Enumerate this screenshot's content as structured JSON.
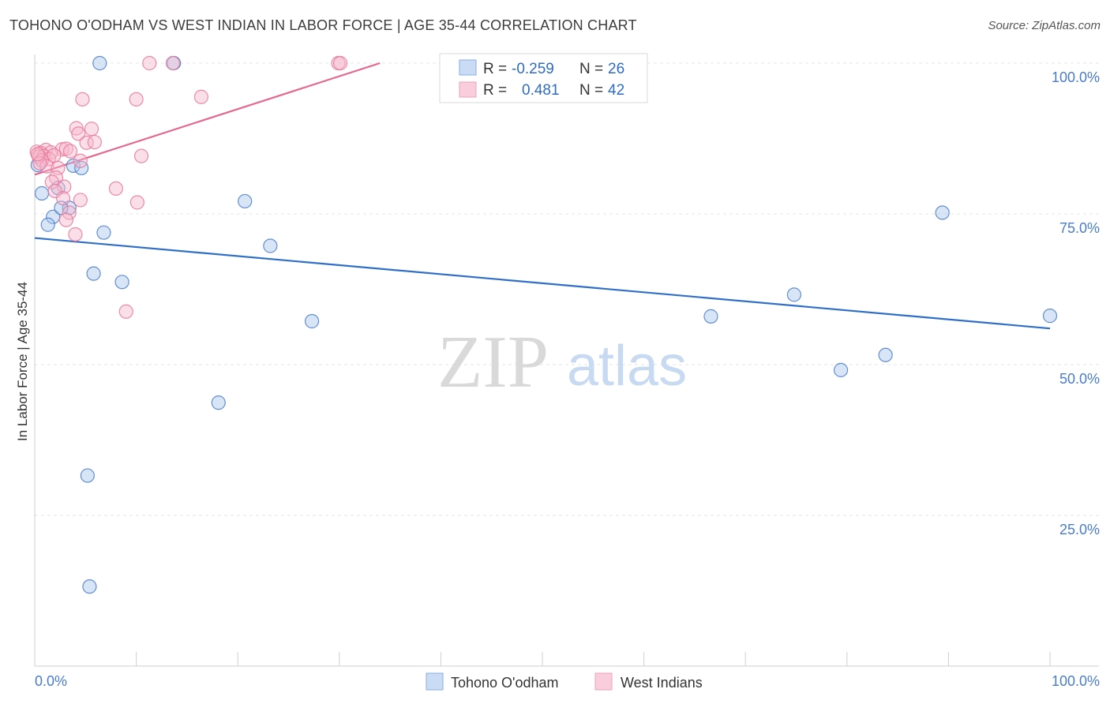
{
  "header": {
    "title": "TOHONO O'ODHAM VS WEST INDIAN IN LABOR FORCE | AGE 35-44 CORRELATION CHART",
    "source": "Source: ZipAtlas.com"
  },
  "watermark": {
    "zip": "ZIP",
    "atlas": "atlas"
  },
  "colors": {
    "blue": "#4a7cc9",
    "blue_fill": "#a9c6ee",
    "blue_line": "#2f6fc8",
    "pink": "#e7799b",
    "pink_fill": "#f6b9cb",
    "pink_line": "#e5678f"
  },
  "stats_legend": [
    {
      "r_label": "R =",
      "r_value": "-0.259",
      "n_label": "N =",
      "n_value": "26"
    },
    {
      "r_label": "R =",
      "r_value": "0.481",
      "n_label": "N =",
      "n_value": "42"
    }
  ],
  "chart_data": {
    "type": "scatter",
    "title": "TOHONO O'ODHAM VS WEST INDIAN IN LABOR FORCE | AGE 35-44 CORRELATION CHART",
    "xlabel": "",
    "ylabel": "In Labor Force | Age 35-44",
    "xlim": [
      0,
      100
    ],
    "ylim": [
      0,
      102
    ],
    "x_tick_labels": [
      "0.0%",
      "100.0%"
    ],
    "y_ticks": [
      25,
      50,
      75,
      100
    ],
    "y_tick_labels": [
      "25.0%",
      "50.0%",
      "75.0%",
      "100.0%"
    ],
    "grid": true,
    "series": [
      {
        "name": "Tohono O'odham",
        "color": "#4a7cc9",
        "trend": {
          "x": [
            0,
            100
          ],
          "y": [
            71.0,
            56.0
          ]
        },
        "points": [
          {
            "x": 6.4,
            "y": 100
          },
          {
            "x": 13.7,
            "y": 100
          },
          {
            "x": 3.8,
            "y": 83
          },
          {
            "x": 4.6,
            "y": 82.6
          },
          {
            "x": 0.7,
            "y": 78.4
          },
          {
            "x": 2.3,
            "y": 79.3
          },
          {
            "x": 1.8,
            "y": 74.5
          },
          {
            "x": 3.4,
            "y": 76
          },
          {
            "x": 1.3,
            "y": 73.2
          },
          {
            "x": 6.8,
            "y": 71.9
          },
          {
            "x": 20.7,
            "y": 77.1
          },
          {
            "x": 23.2,
            "y": 69.7
          },
          {
            "x": 5.8,
            "y": 65.1
          },
          {
            "x": 8.6,
            "y": 63.7
          },
          {
            "x": 27.3,
            "y": 57.2
          },
          {
            "x": 18.1,
            "y": 43.7
          },
          {
            "x": 5.2,
            "y": 31.6
          },
          {
            "x": 5.4,
            "y": 13.2
          },
          {
            "x": 66.6,
            "y": 58.0
          },
          {
            "x": 74.8,
            "y": 61.6
          },
          {
            "x": 79.4,
            "y": 49.1
          },
          {
            "x": 83.8,
            "y": 51.6
          },
          {
            "x": 89.4,
            "y": 75.2
          },
          {
            "x": 100,
            "y": 58.1
          },
          {
            "x": 0.3,
            "y": 83.1
          },
          {
            "x": 2.6,
            "y": 76
          }
        ]
      },
      {
        "name": "West Indians",
        "color": "#e7799b",
        "trend": {
          "x": [
            0,
            34
          ],
          "y": [
            81.5,
            100
          ]
        },
        "points": [
          {
            "x": 11.3,
            "y": 100
          },
          {
            "x": 13.6,
            "y": 100
          },
          {
            "x": 29.9,
            "y": 100
          },
          {
            "x": 30.1,
            "y": 100
          },
          {
            "x": 4.7,
            "y": 94
          },
          {
            "x": 10.0,
            "y": 94
          },
          {
            "x": 16.4,
            "y": 94.4
          },
          {
            "x": 4.1,
            "y": 89.2
          },
          {
            "x": 5.6,
            "y": 89.1
          },
          {
            "x": 4.3,
            "y": 88.3
          },
          {
            "x": 5.1,
            "y": 86.8
          },
          {
            "x": 5.9,
            "y": 86.9
          },
          {
            "x": 2.7,
            "y": 85.7
          },
          {
            "x": 3.1,
            "y": 85.8
          },
          {
            "x": 3.5,
            "y": 85.4
          },
          {
            "x": 1.1,
            "y": 85.6
          },
          {
            "x": 1.6,
            "y": 85.2
          },
          {
            "x": 0.2,
            "y": 85.3
          },
          {
            "x": 0.6,
            "y": 85.1
          },
          {
            "x": 0.9,
            "y": 84.6
          },
          {
            "x": 1.4,
            "y": 84.1
          },
          {
            "x": 0.4,
            "y": 84.5
          },
          {
            "x": 0.7,
            "y": 83.9
          },
          {
            "x": 10.5,
            "y": 84.6
          },
          {
            "x": 4.5,
            "y": 83.8
          },
          {
            "x": 1.2,
            "y": 82.9
          },
          {
            "x": 2.3,
            "y": 82.6
          },
          {
            "x": 0.5,
            "y": 83.4
          },
          {
            "x": 2.1,
            "y": 81.0
          },
          {
            "x": 1.7,
            "y": 80.3
          },
          {
            "x": 2.9,
            "y": 79.5
          },
          {
            "x": 2.0,
            "y": 78.8
          },
          {
            "x": 8.0,
            "y": 79.2
          },
          {
            "x": 2.8,
            "y": 77.6
          },
          {
            "x": 4.5,
            "y": 77.3
          },
          {
            "x": 10.1,
            "y": 76.9
          },
          {
            "x": 3.4,
            "y": 75.2
          },
          {
            "x": 3.1,
            "y": 74.0
          },
          {
            "x": 4.0,
            "y": 71.6
          },
          {
            "x": 9.0,
            "y": 58.8
          },
          {
            "x": 0.3,
            "y": 84.9
          },
          {
            "x": 1.9,
            "y": 84.7
          }
        ]
      }
    ]
  }
}
